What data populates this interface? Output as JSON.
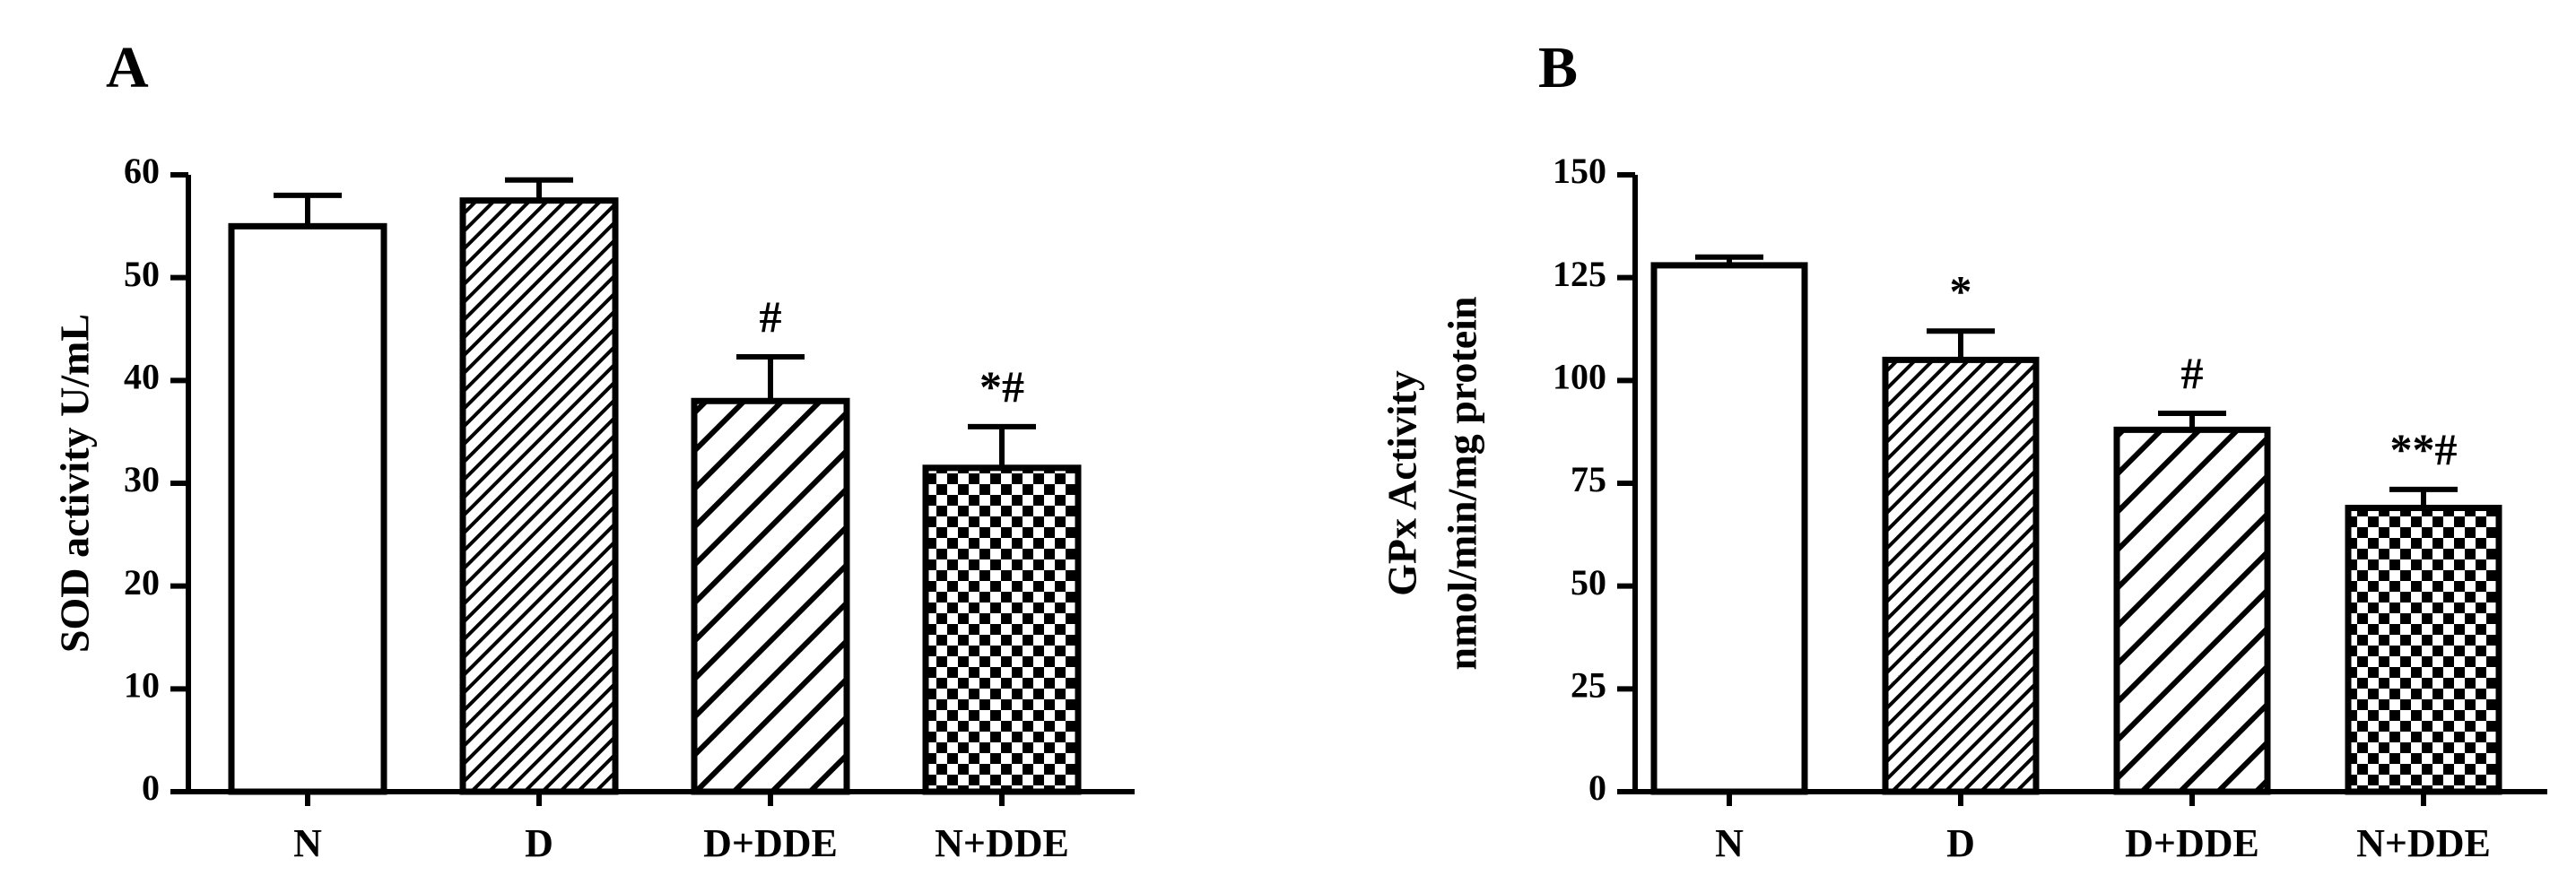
{
  "chart_data": [
    {
      "panel": "A",
      "type": "bar",
      "title": "",
      "xlabel": "",
      "ylabel": [
        "SOD activity U/mL"
      ],
      "categories": [
        "N",
        "D",
        "D+DDE",
        "N+DDE"
      ],
      "values": [
        55,
        57.5,
        38,
        31.5
      ],
      "errors": [
        3,
        2,
        4.3,
        4
      ],
      "annotations": [
        "",
        "",
        "#",
        "*#"
      ],
      "patterns": [
        "solid",
        "hatch-dense",
        "hatch-wide",
        "checker"
      ],
      "ylim": [
        0,
        60
      ],
      "yticks": [
        0,
        10,
        20,
        30,
        40,
        50,
        60
      ]
    },
    {
      "panel": "B",
      "type": "bar",
      "title": "",
      "xlabel": "",
      "ylabel": [
        "GPx Activity",
        "nmol/min/mg protein"
      ],
      "categories": [
        "N",
        "D",
        "D+DDE",
        "N+DDE"
      ],
      "values": [
        128,
        105,
        88,
        69
      ],
      "errors": [
        2,
        7,
        4,
        4.5
      ],
      "annotations": [
        "",
        "*",
        "#",
        "**#"
      ],
      "patterns": [
        "solid",
        "hatch-dense",
        "hatch-wide",
        "checker"
      ],
      "ylim": [
        0,
        150
      ],
      "yticks": [
        0,
        25,
        50,
        75,
        100,
        125,
        150
      ]
    }
  ]
}
